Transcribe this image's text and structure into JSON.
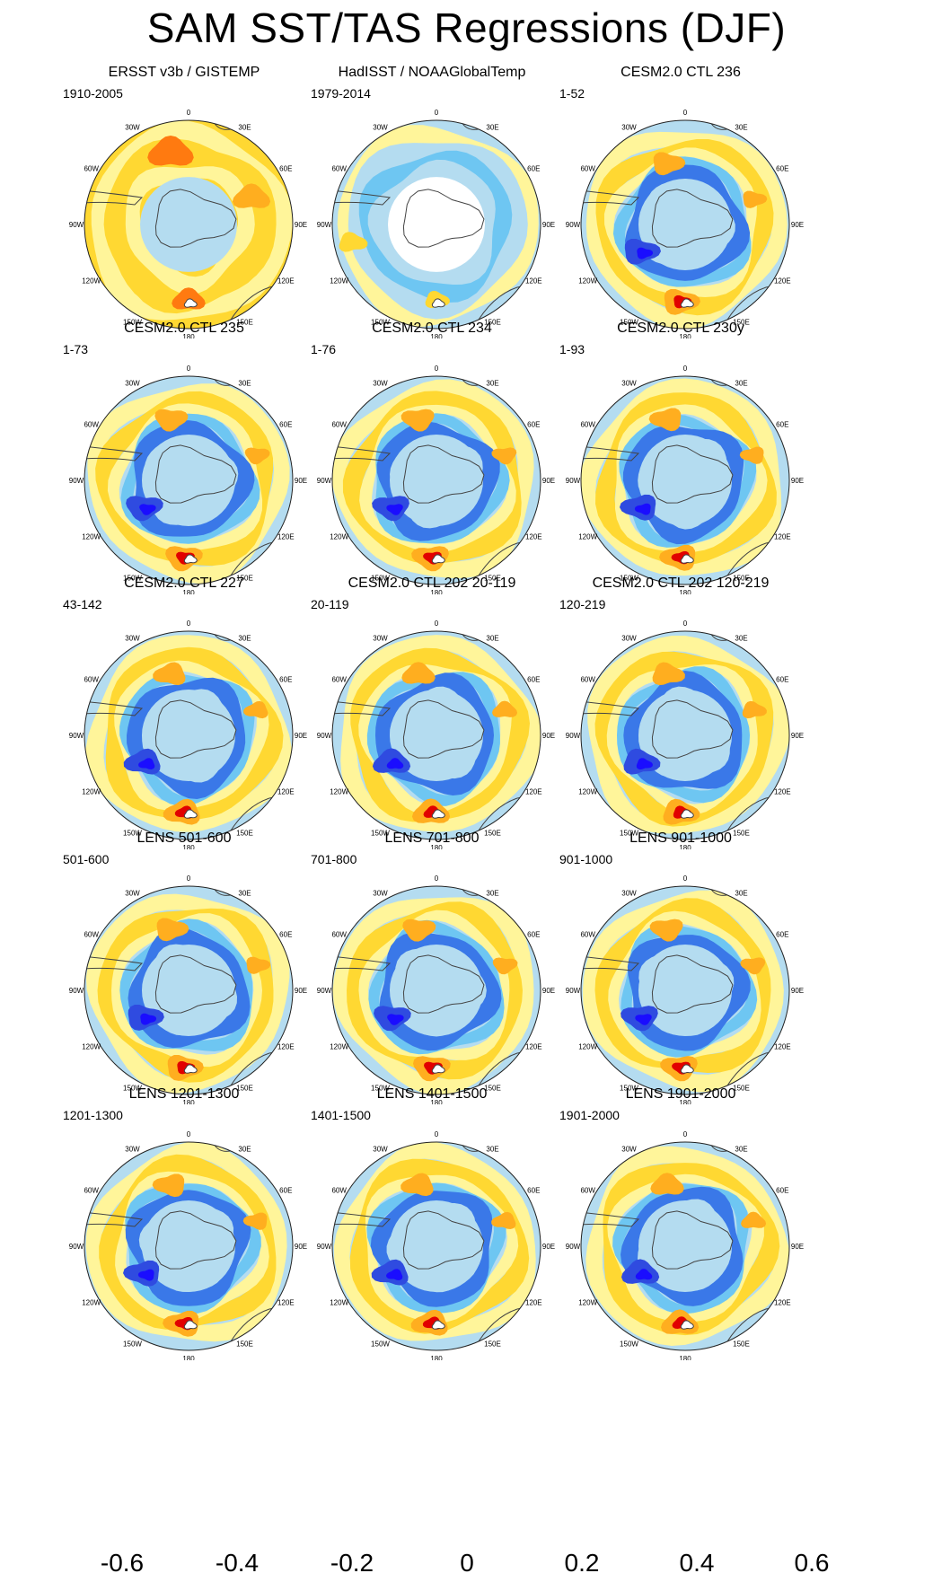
{
  "title": "SAM SST/TAS Regressions (DJF)",
  "longitude_labels": {
    "top": "0",
    "top_right": "30E",
    "right_upper": "60E",
    "right": "90E",
    "right_lower": "120E",
    "bottom_right": "150E",
    "bottom": "180",
    "bottom_left": "150W",
    "left_lower": "120W",
    "left": "90W",
    "left_upper": "60W",
    "top_left": "30W"
  },
  "chart_data": {
    "type": "heatmap",
    "projection": "south-polar-stereographic",
    "panels": [
      {
        "title": "ERSST v3b / GISTEMP",
        "subtitle": "1910-2005",
        "style": "obs1"
      },
      {
        "title": "HadISST / NOAAGlobalTemp",
        "subtitle": "1979-2014",
        "style": "obs2"
      },
      {
        "title": "CESM2.0 CTL 236",
        "subtitle": "1-52",
        "style": "model"
      },
      {
        "title": "CESM2.0 CTL 235",
        "subtitle": "1-73",
        "style": "model"
      },
      {
        "title": "CESM2.0 CTL 234",
        "subtitle": "1-76",
        "style": "model"
      },
      {
        "title": "CESM2.0 CTL 230y",
        "subtitle": "1-93",
        "style": "model"
      },
      {
        "title": "CESM2.0 CTL 227",
        "subtitle": "43-142",
        "style": "model"
      },
      {
        "title": "CESM2.0 CTL 202 20-119",
        "subtitle": "20-119",
        "style": "model"
      },
      {
        "title": "CESM2.0 CTL 202 120-219",
        "subtitle": "120-219",
        "style": "model"
      },
      {
        "title": "LENS 501-600",
        "subtitle": "501-600",
        "style": "model"
      },
      {
        "title": "LENS 701-800",
        "subtitle": "701-800",
        "style": "model"
      },
      {
        "title": "LENS 901-1000",
        "subtitle": "901-1000",
        "style": "model"
      },
      {
        "title": "LENS 1201-1300",
        "subtitle": "1201-1300",
        "style": "model"
      },
      {
        "title": "LENS 1401-1500",
        "subtitle": "1401-1500",
        "style": "model"
      },
      {
        "title": "LENS 1901-2000",
        "subtitle": "1901-2000",
        "style": "model"
      }
    ],
    "colorbar": {
      "levels": [
        -0.7,
        -0.6,
        -0.5,
        -0.4,
        -0.3,
        -0.2,
        -0.1,
        0,
        0.1,
        0.2,
        0.3,
        0.4,
        0.5,
        0.6,
        0.7
      ],
      "colors": [
        "#8a2be2",
        "#1a0dff",
        "#2f4be0",
        "#3a78e8",
        "#1e96ff",
        "#00bfff",
        "#6ec6f2",
        "#b4dcf0",
        "#fff59a",
        "#ffd832",
        "#ffae1f",
        "#ff7a10",
        "#ff3a00",
        "#e10000",
        "#c81e1e",
        "#ffb4b4"
      ],
      "tick_labels": [
        "-0.6",
        "-0.4",
        "-0.2",
        "0",
        "0.2",
        "0.4",
        "0.6"
      ],
      "tick_values": [
        -0.6,
        -0.4,
        -0.2,
        0,
        0.2,
        0.4,
        0.6
      ]
    }
  }
}
